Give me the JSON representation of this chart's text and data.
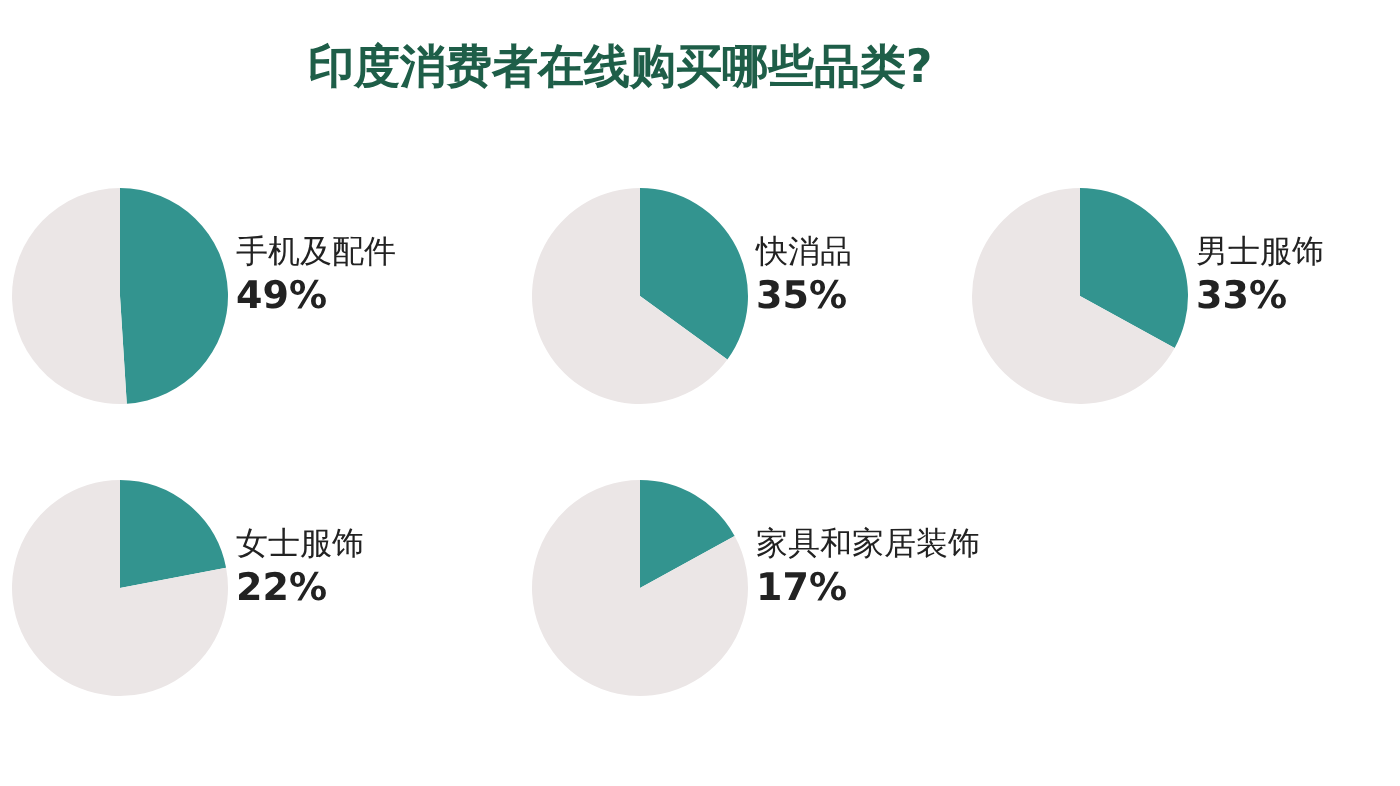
{
  "chart_data": [
    {
      "type": "other",
      "title": "印度消费者在线购买哪些品类?"
    },
    {
      "type": "pie",
      "categories": [
        "手机及配件",
        null
      ],
      "values": [
        49,
        51
      ],
      "value_labels": [
        "49%",
        null
      ],
      "colors": [
        "#33948f",
        "#ebe6e6"
      ],
      "legend": false
    },
    {
      "type": "pie",
      "categories": [
        "快消品",
        null
      ],
      "values": [
        35,
        65
      ],
      "value_labels": [
        "35%",
        null
      ],
      "colors": [
        "#33948f",
        "#ebe6e6"
      ],
      "legend": false
    },
    {
      "type": "pie",
      "categories": [
        "男士服饰",
        null
      ],
      "values": [
        33,
        67
      ],
      "value_labels": [
        "33%",
        null
      ],
      "colors": [
        "#33948f",
        "#ebe6e6"
      ],
      "legend": false
    },
    {
      "type": "pie",
      "categories": [
        "女士服饰",
        null
      ],
      "values": [
        22,
        78
      ],
      "value_labels": [
        "22%",
        null
      ],
      "colors": [
        "#33948f",
        "#ebe6e6"
      ],
      "legend": false
    },
    {
      "type": "pie",
      "categories": [
        "家具和家居装饰",
        null
      ],
      "values": [
        17,
        83
      ],
      "value_labels": [
        "17%",
        null
      ],
      "colors": [
        "#33948f",
        "#ebe6e6"
      ],
      "legend": false
    }
  ]
}
